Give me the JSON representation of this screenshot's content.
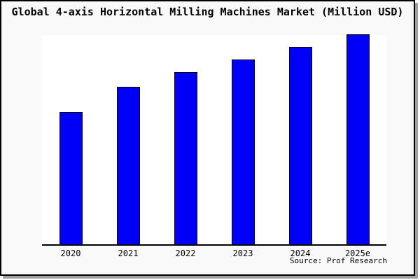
{
  "frame": {
    "background_color": "#f9f9f9",
    "border_color": "#000000",
    "shadow_color": "#a0a0a0"
  },
  "source": "Source: Prof Research",
  "chart_data": {
    "type": "bar",
    "title": "Global 4-axis Horizontal Milling Machines Market (Million USD)",
    "categories": [
      "2020",
      "2021",
      "2022",
      "2023",
      "2024",
      "2025e"
    ],
    "values": [
      63,
      75,
      82,
      88,
      94,
      100
    ],
    "value_units": "relative (% of 2025e; no y-axis tick labels shown in chart)",
    "xlabel": "",
    "ylabel": "",
    "ylim": [
      0,
      100
    ],
    "grid": false,
    "legend": "none",
    "y_axis_labels_visible": false,
    "bar_fill_color": "#0000f9",
    "bar_border_color": "#000000",
    "plot_background_color": "#ffffff",
    "axis_line_color": "#000000"
  }
}
